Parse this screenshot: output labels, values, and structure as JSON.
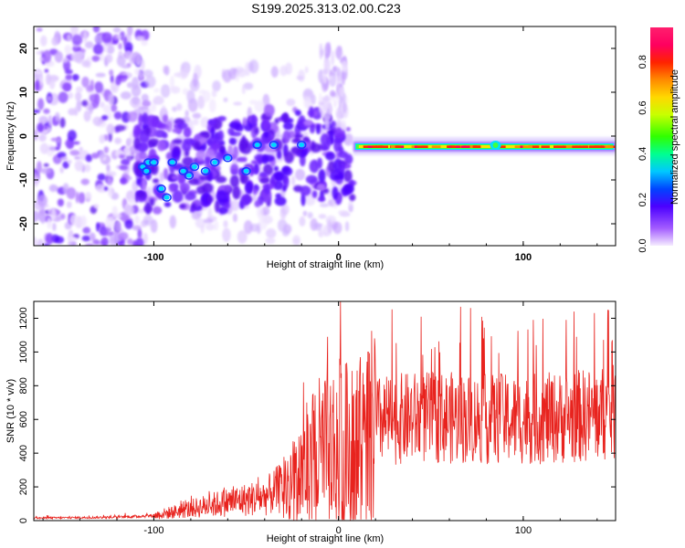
{
  "title": "S199.2025.313.02.00.C23",
  "colorbar": {
    "label": "Normalized spectral amplitude",
    "ticks": [
      "0.0",
      "0.2",
      "0.4",
      "0.6",
      "0.8"
    ],
    "range": [
      0,
      0.95
    ]
  },
  "chart_data": [
    {
      "type": "heatmap",
      "xlabel": "Height of straight line (km)",
      "ylabel": "Frequency (Hz)",
      "xlim": [
        -165,
        150
      ],
      "ylim": [
        -25,
        25
      ],
      "xticks": [
        "-100",
        "0",
        "100"
      ],
      "yticks": [
        "20",
        "10",
        "0",
        "-10",
        "-20"
      ],
      "features": [
        {
          "x_range": [
            -165,
            -105
          ],
          "freq_range": [
            -25,
            25
          ],
          "amplitude": "low",
          "kind": "scattered"
        },
        {
          "x_range": [
            -110,
            10
          ],
          "freq_range": [
            -18,
            5
          ],
          "amplitude": "low-moderate",
          "kind": "clustered"
        },
        {
          "x_range": [
            8,
            150
          ],
          "freq": -2.5,
          "amplitude": "high",
          "kind": "narrow band"
        }
      ]
    },
    {
      "type": "line",
      "xlabel": "Height of straight line (km)",
      "ylabel": "SNR (10 * v/v)",
      "xlim": [
        -165,
        150
      ],
      "ylim": [
        0,
        1300
      ],
      "xticks": [
        "-100",
        "0",
        "100"
      ],
      "yticks": [
        "0",
        "200",
        "400",
        "600",
        "800",
        "1000",
        "1200"
      ],
      "color": "#e8231e",
      "trend": [
        {
          "x": -165,
          "y": 15
        },
        {
          "x": -120,
          "y": 20
        },
        {
          "x": -100,
          "y": 30
        },
        {
          "x": -80,
          "y": 70
        },
        {
          "x": -60,
          "y": 110
        },
        {
          "x": -40,
          "y": 140
        },
        {
          "x": -25,
          "y": 230
        },
        {
          "x": -10,
          "y": 380
        },
        {
          "x": 0,
          "y": 430
        },
        {
          "x": 10,
          "y": 400
        },
        {
          "x": 18,
          "y": 500
        },
        {
          "x": 20,
          "y": 590
        },
        {
          "x": 40,
          "y": 610
        },
        {
          "x": 60,
          "y": 610
        },
        {
          "x": 80,
          "y": 600
        },
        {
          "x": 100,
          "y": 600
        },
        {
          "x": 120,
          "y": 610
        },
        {
          "x": 150,
          "y": 640
        }
      ],
      "peaks": [
        {
          "x": 1,
          "y": 1300
        },
        {
          "x": -6,
          "y": 1090
        },
        {
          "x": 16,
          "y": 1000
        },
        {
          "x": -19,
          "y": 820
        },
        {
          "x": 88,
          "y": 870
        },
        {
          "x": 55,
          "y": 790
        }
      ]
    }
  ]
}
